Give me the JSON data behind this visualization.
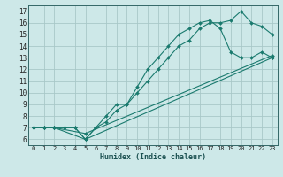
{
  "xlabel": "Humidex (Indice chaleur)",
  "bg_color": "#cde8e8",
  "grid_color": "#a8c8c8",
  "line_color": "#1a7a6e",
  "spine_color": "#336666",
  "xlim": [
    -0.5,
    23.5
  ],
  "ylim": [
    5.5,
    17.5
  ],
  "xticks": [
    0,
    1,
    2,
    3,
    4,
    5,
    6,
    7,
    8,
    9,
    10,
    11,
    12,
    13,
    14,
    15,
    16,
    17,
    18,
    19,
    20,
    21,
    22,
    23
  ],
  "yticks": [
    6,
    7,
    8,
    9,
    10,
    11,
    12,
    13,
    14,
    15,
    16,
    17
  ],
  "curve1_x": [
    0,
    1,
    2,
    3,
    4,
    5,
    6,
    7,
    8,
    9,
    10,
    11,
    12,
    13,
    14,
    15,
    16,
    17,
    18,
    19,
    20,
    21,
    22,
    23
  ],
  "curve1_y": [
    7,
    7,
    7,
    7,
    7,
    6,
    7,
    8,
    9,
    9,
    10,
    11,
    12,
    13,
    14,
    14.5,
    15.5,
    16,
    16,
    16.2,
    17,
    16,
    15.7,
    15
  ],
  "curve2_x": [
    0,
    1,
    2,
    3,
    4,
    5,
    6,
    7,
    8,
    9,
    10,
    11,
    12,
    13,
    14,
    15,
    16,
    17,
    18,
    19,
    20,
    21,
    22,
    23
  ],
  "curve2_y": [
    7,
    7,
    7,
    7,
    7,
    6,
    7,
    7.5,
    8.5,
    9,
    10.5,
    12,
    13,
    14,
    15,
    15.5,
    16,
    16.2,
    15.5,
    13.5,
    13,
    13,
    13.5,
    13
  ],
  "curve3_x": [
    0,
    1,
    2,
    5,
    23
  ],
  "curve3_y": [
    7,
    7,
    7,
    6,
    13
  ],
  "curve4_x": [
    0,
    1,
    2,
    5,
    23
  ],
  "curve4_y": [
    7,
    7,
    7,
    6.5,
    13.2
  ]
}
